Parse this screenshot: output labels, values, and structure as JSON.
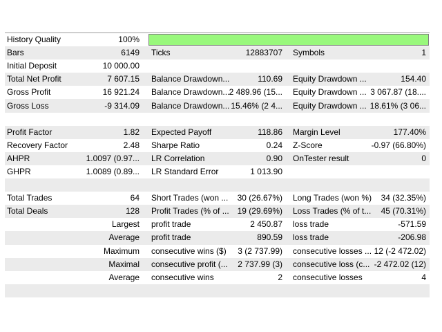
{
  "report": {
    "kind": "strategy-tester-backtest-results",
    "colors": {
      "row_alt_bg": "#ebebeb",
      "table_border": "#9b9b9b",
      "quality_bar_fill": "#99f87c",
      "quality_bar_border": "#7f7f7f"
    },
    "history_quality": {
      "label": "History Quality",
      "value": "100%",
      "bar_percent": 100
    },
    "table": {
      "rows": [
        {
          "c1l": "History Quality",
          "c1v": "100%",
          "c2l": "",
          "c2v": "",
          "c3l": "",
          "c3v": "",
          "has_bar": true
        },
        {
          "c1l": "Bars",
          "c1v": "6149",
          "c2l": "Ticks",
          "c2v": "12883707",
          "c3l": "Symbols",
          "c3v": "1"
        },
        {
          "c1l": "Initial Deposit",
          "c1v": "10 000.00",
          "c2l": "",
          "c2v": "",
          "c3l": "",
          "c3v": ""
        },
        {
          "c1l": "Total Net Profit",
          "c1v": "7 607.15",
          "c2l": "Balance Drawdown...",
          "c2v": "110.69",
          "c3l": "Equity Drawdown ...",
          "c3v": "154.40"
        },
        {
          "c1l": "Gross Profit",
          "c1v": "16 921.24",
          "c2l": "Balance Drawdown...",
          "c2v": "2 489.96 (15...",
          "c3l": "Equity Drawdown ...",
          "c3v": "3 067.87 (18...."
        },
        {
          "c1l": "Gross Loss",
          "c1v": "-9 314.09",
          "c2l": "Balance Drawdown...",
          "c2v": "15.46% (2 4...",
          "c3l": "Equity Drawdown ...",
          "c3v": "18.61% (3 06..."
        },
        {
          "c1l": "",
          "c1v": "",
          "c2l": "",
          "c2v": "",
          "c3l": "",
          "c3v": ""
        },
        {
          "c1l": "Profit Factor",
          "c1v": "1.82",
          "c2l": "Expected Payoff",
          "c2v": "118.86",
          "c3l": "Margin Level",
          "c3v": "177.40%"
        },
        {
          "c1l": "Recovery Factor",
          "c1v": "2.48",
          "c2l": "Sharpe Ratio",
          "c2v": "0.24",
          "c3l": "Z-Score",
          "c3v": "-0.97 (66.80%)"
        },
        {
          "c1l": "AHPR",
          "c1v": "1.0097 (0.97...",
          "c2l": "LR Correlation",
          "c2v": "0.90",
          "c3l": "OnTester result",
          "c3v": "0"
        },
        {
          "c1l": "GHPR",
          "c1v": "1.0089 (0.89...",
          "c2l": "LR Standard Error",
          "c2v": "1 013.90",
          "c3l": "",
          "c3v": ""
        },
        {
          "c1l": "",
          "c1v": "",
          "c2l": "",
          "c2v": "",
          "c3l": "",
          "c3v": ""
        },
        {
          "c1l": "Total Trades",
          "c1v": "64",
          "c2l": "Short Trades (won ...",
          "c2v": "30 (26.67%)",
          "c3l": "Long Trades (won %)",
          "c3v": "34 (32.35%)"
        },
        {
          "c1l": "Total Deals",
          "c1v": "128",
          "c2l": "Profit Trades (% of ...",
          "c2v": "19 (29.69%)",
          "c3l": "Loss Trades (% of t...",
          "c3v": "45 (70.31%)"
        },
        {
          "c1l": "",
          "c1v": "Largest",
          "c2l": "profit trade",
          "c2v": "2 450.87",
          "c3l": "loss trade",
          "c3v": "-571.59"
        },
        {
          "c1l": "",
          "c1v": "Average",
          "c2l": "profit trade",
          "c2v": "890.59",
          "c3l": "loss trade",
          "c3v": "-206.98"
        },
        {
          "c1l": "",
          "c1v": "Maximum",
          "c2l": "consecutive wins ($)",
          "c2v": "3 (2 737.99)",
          "c3l": "consecutive losses ...",
          "c3v": "12 (-2 472.02)"
        },
        {
          "c1l": "",
          "c1v": "Maximal",
          "c2l": "consecutive profit (...",
          "c2v": "2 737.99 (3)",
          "c3l": "consecutive loss (c...",
          "c3v": "-2 472.02 (12)"
        },
        {
          "c1l": "",
          "c1v": "Average",
          "c2l": "consecutive wins",
          "c2v": "2",
          "c3l": "consecutive losses",
          "c3v": "4"
        },
        {
          "c1l": "",
          "c1v": "",
          "c2l": "",
          "c2v": "",
          "c3l": "",
          "c3v": ""
        }
      ]
    }
  }
}
